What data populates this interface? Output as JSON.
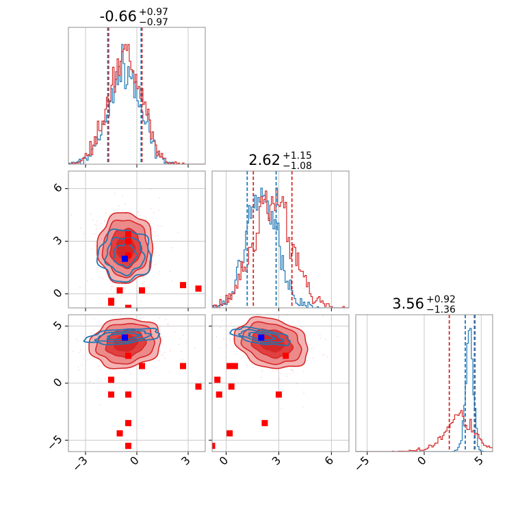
{
  "colors": {
    "posterior_a": "#d62728",
    "posterior_b": "#1f77b4",
    "truth_marker": "#0000ff",
    "samples_marker": "#ff0000",
    "grid": "#c8c8c8"
  },
  "chart_data": {
    "type": "corner",
    "grid": true,
    "params": [
      {
        "median": "-0.66",
        "plus": "+0.97",
        "minus": "−0.97",
        "range": [
          -4.0,
          4.0
        ],
        "ticks": [
          -3,
          0,
          3
        ],
        "tick_labels": [
          "−3",
          "0",
          "3"
        ],
        "quantiles_a": [
          -1.65,
          0.3
        ],
        "quantiles_b": [
          -1.7,
          0.25
        ]
      },
      {
        "median": "2.62",
        "plus": "+1.15",
        "minus": "−1.08",
        "range": [
          -0.8,
          7.0
        ],
        "ticks": [
          0,
          3,
          6
        ],
        "tick_labels": [
          "0",
          "3",
          "6"
        ],
        "quantiles_a": [
          1.55,
          3.75
        ],
        "quantiles_b": [
          1.2,
          2.85
        ]
      },
      {
        "median": "3.56",
        "plus": "+0.92",
        "minus": "−1.36",
        "range": [
          -6.0,
          6.0
        ],
        "ticks": [
          -5,
          0,
          5
        ],
        "tick_labels": [
          "−5",
          "0",
          "5"
        ],
        "quantiles_a": [
          2.2,
          4.45
        ],
        "quantiles_b": [
          3.6,
          4.4
        ]
      }
    ],
    "truth": [
      -0.7,
      2.0,
      4.0
    ],
    "samples": [
      [
        -1.5,
        -0.5,
        0.3
      ],
      [
        -1.5,
        -0.4,
        -1.0
      ],
      [
        -1.0,
        0.2,
        -4.4
      ],
      [
        -0.5,
        3.0,
        -1.0
      ],
      [
        -0.5,
        -0.8,
        -5.5
      ],
      [
        -0.5,
        3.4,
        2.4
      ],
      [
        -0.5,
        2.2,
        -3.5
      ],
      [
        0.3,
        0.2,
        1.5
      ],
      [
        2.7,
        0.5,
        1.5
      ],
      [
        3.6,
        0.3,
        -0.3
      ]
    ],
    "samples_note": "sample marker positions approximate"
  }
}
